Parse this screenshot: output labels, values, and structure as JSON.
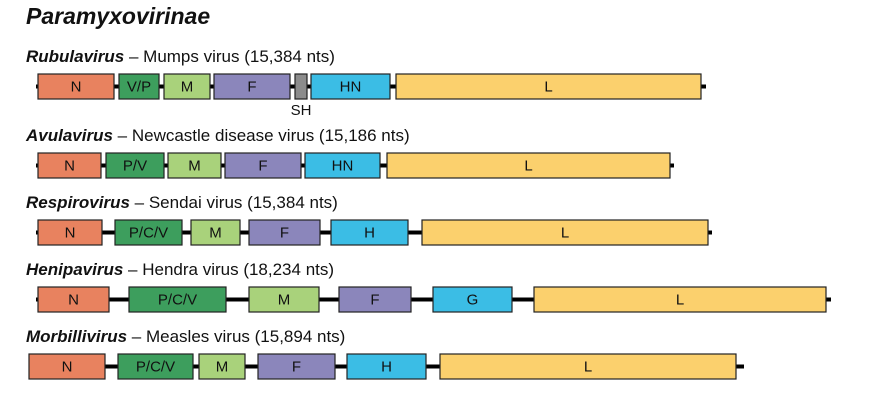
{
  "title": "Paramyxovirinae",
  "colors": {
    "N": "#e8825f",
    "PV": "#3d9e5d",
    "M": "#a9d27b",
    "F": "#8b86bb",
    "SH": "#8c8c8c",
    "HN": "#3bbde5",
    "L": "#fbd06d",
    "line": "#000000",
    "border": "#222222"
  },
  "rows": [
    {
      "genus": "Rubulavirus",
      "separator": " – ",
      "virus": "Mumps virus  (15,384 nts)",
      "genes": [
        {
          "label": "N",
          "color_key": "N"
        },
        {
          "label": "V/P",
          "color_key": "PV"
        },
        {
          "label": "M",
          "color_key": "M"
        },
        {
          "label": "F",
          "color_key": "F"
        },
        {
          "label": "SH",
          "color_key": "SH"
        },
        {
          "label": "HN",
          "color_key": "HN"
        },
        {
          "label": "L",
          "color_key": "L"
        }
      ]
    },
    {
      "genus": "Avulavirus",
      "separator": " – ",
      "virus": "Newcastle disease virus (15,186 nts)",
      "genes": [
        {
          "label": "N",
          "color_key": "N"
        },
        {
          "label": "P/V",
          "color_key": "PV"
        },
        {
          "label": "M",
          "color_key": "M"
        },
        {
          "label": "F",
          "color_key": "F"
        },
        {
          "label": "HN",
          "color_key": "HN"
        },
        {
          "label": "L",
          "color_key": "L"
        }
      ]
    },
    {
      "genus": "Respirovirus",
      "separator": " – ",
      "virus": "Sendai virus (15,384 nts)",
      "genes": [
        {
          "label": "N",
          "color_key": "N"
        },
        {
          "label": "P/C/V",
          "color_key": "PV"
        },
        {
          "label": "M",
          "color_key": "M"
        },
        {
          "label": "F",
          "color_key": "F"
        },
        {
          "label": "H",
          "color_key": "HN"
        },
        {
          "label": "L",
          "color_key": "L"
        }
      ]
    },
    {
      "genus": "Henipavirus",
      "separator": " – ",
      "virus": "Hendra virus (18,234 nts)",
      "genes": [
        {
          "label": "N",
          "color_key": "N"
        },
        {
          "label": "P/C/V",
          "color_key": "PV"
        },
        {
          "label": "M",
          "color_key": "M"
        },
        {
          "label": "F",
          "color_key": "F"
        },
        {
          "label": "G",
          "color_key": "HN"
        },
        {
          "label": "L",
          "color_key": "L"
        }
      ]
    },
    {
      "genus": "Morbillivirus",
      "separator": " – ",
      "virus": "Measles virus (15,894 nts)",
      "genes": [
        {
          "label": "N",
          "color_key": "N"
        },
        {
          "label": "P/C/V",
          "color_key": "PV"
        },
        {
          "label": "M",
          "color_key": "M"
        },
        {
          "label": "F",
          "color_key": "F"
        },
        {
          "label": "H",
          "color_key": "HN"
        },
        {
          "label": "L",
          "color_key": "L"
        }
      ]
    }
  ]
}
